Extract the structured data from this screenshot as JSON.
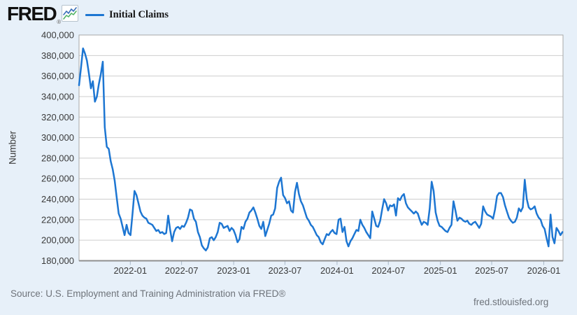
{
  "header": {
    "logo_text": "FRED",
    "logo_registered": "®",
    "legend": {
      "label": "Initial Claims"
    }
  },
  "footer": {
    "source": "Source: U.S. Employment and Training Administration via FRED®",
    "site": "fred.stlouisfed.org"
  },
  "colors": {
    "page_background": "#e7f0f9",
    "plot_background": "#ffffff",
    "gridline": "#cdcdcd",
    "plot_border": "#a7a7a7",
    "plot_border_bottom": "#8f8f8f",
    "tick_mark": "#a9b9c9",
    "axis_text": "#3a3a3a",
    "line": "#1d76d2",
    "icon_blue": "#3a6fb8",
    "icon_green": "#51b364"
  },
  "chart_data": {
    "type": "line",
    "series_name": "Initial Claims",
    "ylabel": "Number",
    "unit": "Number",
    "frequency": "weekly",
    "line_color": "#1d76d2",
    "grid": true,
    "legend_position": "top-left",
    "xlim": [
      2021.504,
      2026.186
    ],
    "ylim": [
      180000,
      400000
    ],
    "y_tick_step": 20000,
    "y_tick_labels": [
      "180,000",
      "200,000",
      "220,000",
      "240,000",
      "260,000",
      "280,000",
      "300,000",
      "320,000",
      "340,000",
      "360,000",
      "380,000",
      "400,000"
    ],
    "x_ticks": [
      {
        "pos": 2022.0,
        "label": "2022-01"
      },
      {
        "pos": 2022.496,
        "label": "2022-07"
      },
      {
        "pos": 2023.0,
        "label": "2023-01"
      },
      {
        "pos": 2023.496,
        "label": "2023-07"
      },
      {
        "pos": 2024.0,
        "label": "2024-01"
      },
      {
        "pos": 2024.496,
        "label": "2024-07"
      },
      {
        "pos": 2025.0,
        "label": "2025-01"
      },
      {
        "pos": 2025.496,
        "label": "2025-07"
      },
      {
        "pos": 2026.0,
        "label": "2026-01"
      }
    ],
    "x_start_year": 2021.504,
    "x_step_years": 0.019165,
    "values": [
      351000,
      368000,
      387000,
      382000,
      375000,
      362000,
      348000,
      355000,
      335000,
      340000,
      352000,
      362000,
      374000,
      310000,
      291000,
      289000,
      277000,
      269000,
      258000,
      242000,
      226000,
      221000,
      213000,
      205000,
      215000,
      207000,
      205000,
      226000,
      248000,
      244000,
      236000,
      228000,
      224000,
      222000,
      221000,
      217000,
      216000,
      215000,
      212000,
      209000,
      210000,
      207000,
      208000,
      206000,
      207000,
      224000,
      210000,
      199000,
      208000,
      212000,
      213000,
      211000,
      214000,
      213000,
      217000,
      222000,
      230000,
      229000,
      221000,
      218000,
      208000,
      203000,
      195000,
      192000,
      190000,
      193000,
      202000,
      203000,
      200000,
      203000,
      208000,
      217000,
      216000,
      212000,
      213000,
      214000,
      209000,
      212000,
      210000,
      205000,
      198000,
      201000,
      213000,
      211000,
      218000,
      221000,
      227000,
      229000,
      232000,
      227000,
      221000,
      214000,
      211000,
      218000,
      204000,
      210000,
      216000,
      224000,
      225000,
      231000,
      251000,
      257000,
      261000,
      244000,
      241000,
      236000,
      238000,
      229000,
      227000,
      247000,
      256000,
      245000,
      238000,
      234000,
      228000,
      222000,
      219000,
      215000,
      213000,
      209000,
      205000,
      203000,
      198000,
      196000,
      201000,
      206000,
      205000,
      208000,
      210000,
      207000,
      206000,
      220000,
      221000,
      208000,
      213000,
      199000,
      194000,
      199000,
      202000,
      206000,
      210000,
      209000,
      220000,
      215000,
      212000,
      208000,
      205000,
      202000,
      228000,
      221000,
      214000,
      213000,
      219000,
      230000,
      240000,
      236000,
      229000,
      234000,
      233000,
      235000,
      224000,
      241000,
      239000,
      243000,
      245000,
      236000,
      232000,
      230000,
      228000,
      226000,
      228000,
      226000,
      220000,
      215000,
      218000,
      217000,
      215000,
      231000,
      257000,
      248000,
      227000,
      219000,
      214000,
      213000,
      211000,
      209000,
      208000,
      212000,
      215000,
      238000,
      229000,
      219000,
      222000,
      221000,
      219000,
      218000,
      219000,
      216000,
      215000,
      217000,
      218000,
      215000,
      212000,
      216000,
      233000,
      228000,
      225000,
      224000,
      223000,
      221000,
      230000,
      243000,
      246000,
      246000,
      242000,
      234000,
      228000,
      222000,
      219000,
      217000,
      218000,
      222000,
      231000,
      228000,
      232000,
      259000,
      240000,
      232000,
      230000,
      231000,
      233000,
      226000,
      222000,
      220000,
      214000,
      211000,
      202000,
      194000,
      225000,
      203000,
      197000,
      212000,
      209000,
      205000,
      208000
    ]
  }
}
